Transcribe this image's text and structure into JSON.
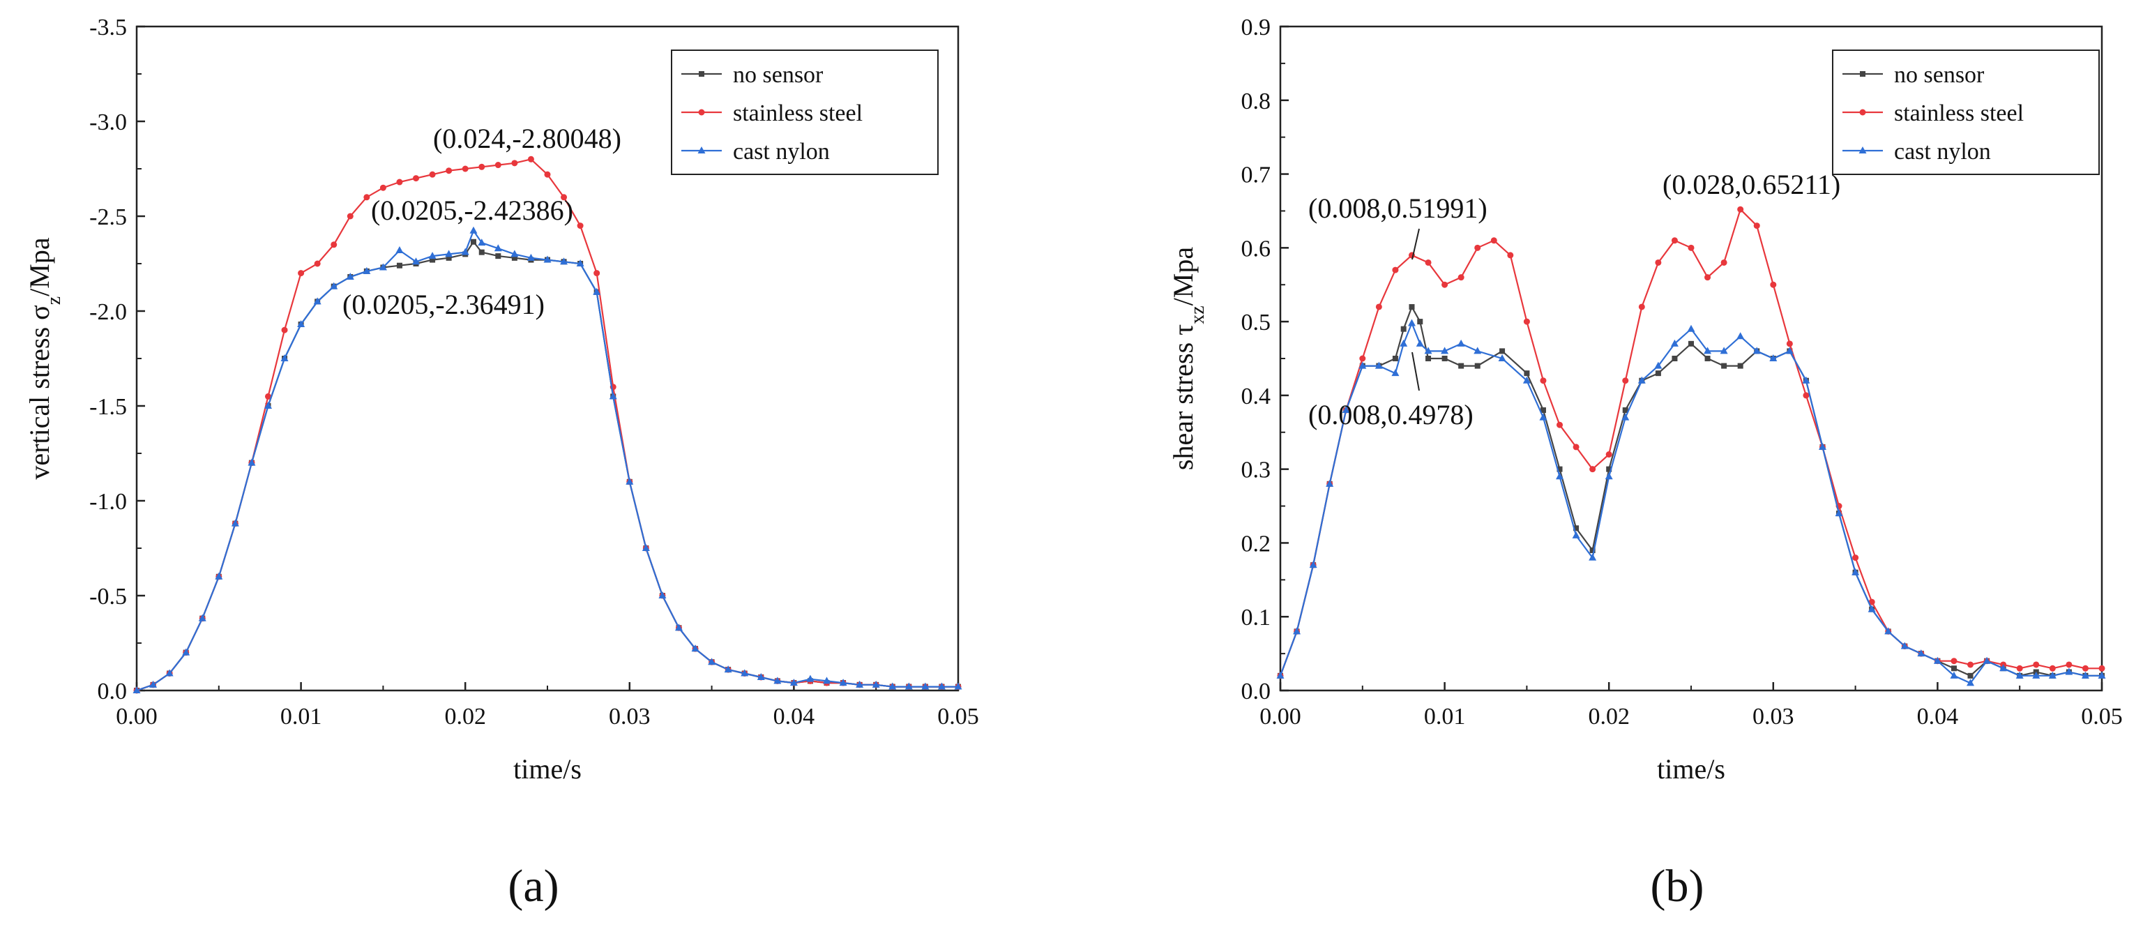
{
  "figure": {
    "colors": {
      "no_sensor": "#444444",
      "stainless_steel": "#e8373c",
      "cast_nylon": "#2f6fd6"
    }
  },
  "chart_data": [
    {
      "type": "line",
      "panel_label": "(a)",
      "xlabel": "time/s",
      "ylabel": "vertical stress σ",
      "ylabel_sub": "z",
      "ylabel_unit": "/Mpa",
      "xlim": [
        0,
        0.05
      ],
      "ylim": [
        0,
        -3.5
      ],
      "x_ticks": [
        "0.00",
        "0.01",
        "0.02",
        "0.03",
        "0.04",
        "0.05"
      ],
      "y_ticks": [
        "0.0",
        "-0.5",
        "-1.0",
        "-1.5",
        "-2.0",
        "-2.5",
        "-3.0",
        "-3.5"
      ],
      "legend": [
        "no sensor",
        "stainless steel",
        "cast nylon"
      ],
      "legend_position": "top-right",
      "series": [
        {
          "name": "no sensor",
          "key": "no_sensor",
          "x": [
            0,
            0.001,
            0.002,
            0.003,
            0.004,
            0.005,
            0.006,
            0.007,
            0.008,
            0.009,
            0.01,
            0.011,
            0.012,
            0.013,
            0.014,
            0.015,
            0.016,
            0.017,
            0.018,
            0.019,
            0.02,
            0.0205,
            0.021,
            0.022,
            0.023,
            0.024,
            0.025,
            0.026,
            0.027,
            0.028,
            0.029,
            0.03,
            0.031,
            0.032,
            0.033,
            0.034,
            0.035,
            0.036,
            0.037,
            0.038,
            0.039,
            0.04,
            0.041,
            0.042,
            0.043,
            0.044,
            0.045,
            0.046,
            0.047,
            0.048,
            0.049,
            0.05
          ],
          "y": [
            0,
            -0.03,
            -0.09,
            -0.2,
            -0.38,
            -0.6,
            -0.88,
            -1.2,
            -1.5,
            -1.75,
            -1.93,
            -2.05,
            -2.13,
            -2.18,
            -2.21,
            -2.23,
            -2.24,
            -2.25,
            -2.27,
            -2.28,
            -2.3,
            -2.36491,
            -2.31,
            -2.29,
            -2.28,
            -2.27,
            -2.27,
            -2.26,
            -2.25,
            -2.1,
            -1.55,
            -1.1,
            -0.75,
            -0.5,
            -0.33,
            -0.22,
            -0.15,
            -0.11,
            -0.09,
            -0.07,
            -0.05,
            -0.04,
            -0.05,
            -0.04,
            -0.04,
            -0.03,
            -0.03,
            -0.02,
            -0.02,
            -0.02,
            -0.02,
            -0.02
          ]
        },
        {
          "name": "stainless steel",
          "key": "stainless_steel",
          "x": [
            0,
            0.001,
            0.002,
            0.003,
            0.004,
            0.005,
            0.006,
            0.007,
            0.008,
            0.009,
            0.01,
            0.011,
            0.012,
            0.013,
            0.014,
            0.015,
            0.016,
            0.017,
            0.018,
            0.019,
            0.02,
            0.021,
            0.022,
            0.023,
            0.024,
            0.025,
            0.026,
            0.027,
            0.028,
            0.029,
            0.03,
            0.031,
            0.032,
            0.033,
            0.034,
            0.035,
            0.036,
            0.037,
            0.038,
            0.039,
            0.04,
            0.041,
            0.042,
            0.043,
            0.044,
            0.045,
            0.046,
            0.047,
            0.048,
            0.049,
            0.05
          ],
          "y": [
            0,
            -0.03,
            -0.09,
            -0.2,
            -0.38,
            -0.6,
            -0.88,
            -1.2,
            -1.55,
            -1.9,
            -2.2,
            -2.25,
            -2.35,
            -2.5,
            -2.6,
            -2.65,
            -2.68,
            -2.7,
            -2.72,
            -2.74,
            -2.75,
            -2.76,
            -2.77,
            -2.78,
            -2.80048,
            -2.72,
            -2.6,
            -2.45,
            -2.2,
            -1.6,
            -1.1,
            -0.75,
            -0.5,
            -0.33,
            -0.22,
            -0.15,
            -0.11,
            -0.09,
            -0.07,
            -0.05,
            -0.04,
            -0.05,
            -0.04,
            -0.04,
            -0.03,
            -0.03,
            -0.02,
            -0.02,
            -0.02,
            -0.02,
            -0.02
          ]
        },
        {
          "name": "cast nylon",
          "key": "cast_nylon",
          "x": [
            0,
            0.001,
            0.002,
            0.003,
            0.004,
            0.005,
            0.006,
            0.007,
            0.008,
            0.009,
            0.01,
            0.011,
            0.012,
            0.013,
            0.014,
            0.015,
            0.016,
            0.017,
            0.018,
            0.019,
            0.02,
            0.0205,
            0.021,
            0.022,
            0.023,
            0.024,
            0.025,
            0.026,
            0.027,
            0.028,
            0.029,
            0.03,
            0.031,
            0.032,
            0.033,
            0.034,
            0.035,
            0.036,
            0.037,
            0.038,
            0.039,
            0.04,
            0.041,
            0.042,
            0.043,
            0.044,
            0.045,
            0.046,
            0.047,
            0.048,
            0.049,
            0.05
          ],
          "y": [
            0,
            -0.03,
            -0.09,
            -0.2,
            -0.38,
            -0.6,
            -0.88,
            -1.2,
            -1.5,
            -1.75,
            -1.93,
            -2.05,
            -2.13,
            -2.18,
            -2.21,
            -2.23,
            -2.32,
            -2.26,
            -2.29,
            -2.3,
            -2.31,
            -2.42386,
            -2.36,
            -2.33,
            -2.3,
            -2.28,
            -2.27,
            -2.26,
            -2.25,
            -2.1,
            -1.55,
            -1.1,
            -0.75,
            -0.5,
            -0.33,
            -0.22,
            -0.15,
            -0.11,
            -0.09,
            -0.07,
            -0.05,
            -0.04,
            -0.06,
            -0.05,
            -0.04,
            -0.03,
            -0.03,
            -0.02,
            -0.02,
            -0.02,
            -0.02,
            -0.02
          ]
        }
      ],
      "annotations": [
        {
          "text": "(0.024,-2.80048)",
          "x": 0.024,
          "y": -2.80048
        },
        {
          "text": "(0.0205,-2.42386)",
          "x": 0.0205,
          "y": -2.42386
        },
        {
          "text": "(0.0205,-2.36491)",
          "x": 0.0205,
          "y": -2.36491
        }
      ]
    },
    {
      "type": "line",
      "panel_label": "(b)",
      "xlabel": "time/s",
      "ylabel": "shear stress τ",
      "ylabel_sub": "xz",
      "ylabel_unit": "/Mpa",
      "xlim": [
        0,
        0.05
      ],
      "ylim": [
        0,
        0.9
      ],
      "x_ticks": [
        "0.00",
        "0.01",
        "0.02",
        "0.03",
        "0.04",
        "0.05"
      ],
      "y_ticks": [
        "0.0",
        "0.1",
        "0.2",
        "0.3",
        "0.4",
        "0.5",
        "0.6",
        "0.7",
        "0.8",
        "0.9"
      ],
      "legend": [
        "no sensor",
        "stainless steel",
        "cast nylon"
      ],
      "legend_position": "top-right",
      "series": [
        {
          "name": "no sensor",
          "key": "no_sensor",
          "x": [
            0,
            0.001,
            0.002,
            0.003,
            0.004,
            0.005,
            0.006,
            0.007,
            0.0075,
            0.008,
            0.0085,
            0.009,
            0.01,
            0.011,
            0.012,
            0.0135,
            0.015,
            0.016,
            0.017,
            0.018,
            0.019,
            0.02,
            0.021,
            0.022,
            0.023,
            0.024,
            0.025,
            0.026,
            0.027,
            0.028,
            0.029,
            0.03,
            0.031,
            0.032,
            0.033,
            0.034,
            0.035,
            0.036,
            0.037,
            0.038,
            0.039,
            0.04,
            0.041,
            0.042,
            0.043,
            0.044,
            0.045,
            0.046,
            0.047,
            0.048,
            0.049,
            0.05
          ],
          "y": [
            0.02,
            0.08,
            0.17,
            0.28,
            0.38,
            0.44,
            0.44,
            0.45,
            0.49,
            0.51991,
            0.5,
            0.45,
            0.45,
            0.44,
            0.44,
            0.46,
            0.43,
            0.38,
            0.3,
            0.22,
            0.19,
            0.3,
            0.38,
            0.42,
            0.43,
            0.45,
            0.47,
            0.45,
            0.44,
            0.44,
            0.46,
            0.45,
            0.46,
            0.42,
            0.33,
            0.24,
            0.16,
            0.11,
            0.08,
            0.06,
            0.05,
            0.04,
            0.03,
            0.02,
            0.04,
            0.03,
            0.02,
            0.025,
            0.02,
            0.025,
            0.02,
            0.02
          ]
        },
        {
          "name": "stainless steel",
          "key": "stainless_steel",
          "x": [
            0,
            0.001,
            0.002,
            0.003,
            0.004,
            0.005,
            0.006,
            0.007,
            0.008,
            0.009,
            0.01,
            0.011,
            0.012,
            0.013,
            0.014,
            0.015,
            0.016,
            0.017,
            0.018,
            0.019,
            0.02,
            0.021,
            0.022,
            0.023,
            0.024,
            0.025,
            0.026,
            0.027,
            0.028,
            0.029,
            0.03,
            0.031,
            0.032,
            0.033,
            0.034,
            0.035,
            0.036,
            0.037,
            0.038,
            0.039,
            0.04,
            0.041,
            0.042,
            0.043,
            0.044,
            0.045,
            0.046,
            0.047,
            0.048,
            0.049,
            0.05
          ],
          "y": [
            0.02,
            0.08,
            0.17,
            0.28,
            0.38,
            0.45,
            0.52,
            0.57,
            0.59,
            0.58,
            0.55,
            0.56,
            0.6,
            0.61,
            0.59,
            0.5,
            0.42,
            0.36,
            0.33,
            0.3,
            0.32,
            0.42,
            0.52,
            0.58,
            0.61,
            0.6,
            0.56,
            0.58,
            0.65211,
            0.63,
            0.55,
            0.47,
            0.4,
            0.33,
            0.25,
            0.18,
            0.12,
            0.08,
            0.06,
            0.05,
            0.04,
            0.04,
            0.035,
            0.04,
            0.035,
            0.03,
            0.035,
            0.03,
            0.035,
            0.03,
            0.03
          ]
        },
        {
          "name": "cast nylon",
          "key": "cast_nylon",
          "x": [
            0,
            0.001,
            0.002,
            0.003,
            0.004,
            0.005,
            0.006,
            0.007,
            0.0075,
            0.008,
            0.0085,
            0.009,
            0.01,
            0.011,
            0.012,
            0.0135,
            0.015,
            0.016,
            0.017,
            0.018,
            0.019,
            0.02,
            0.021,
            0.022,
            0.023,
            0.024,
            0.025,
            0.026,
            0.027,
            0.028,
            0.029,
            0.03,
            0.031,
            0.032,
            0.033,
            0.034,
            0.035,
            0.036,
            0.037,
            0.038,
            0.039,
            0.04,
            0.041,
            0.042,
            0.043,
            0.044,
            0.045,
            0.046,
            0.047,
            0.048,
            0.049,
            0.05
          ],
          "y": [
            0.02,
            0.08,
            0.17,
            0.28,
            0.38,
            0.44,
            0.44,
            0.43,
            0.47,
            0.4978,
            0.47,
            0.46,
            0.46,
            0.47,
            0.46,
            0.45,
            0.42,
            0.37,
            0.29,
            0.21,
            0.18,
            0.29,
            0.37,
            0.42,
            0.44,
            0.47,
            0.49,
            0.46,
            0.46,
            0.48,
            0.46,
            0.45,
            0.46,
            0.42,
            0.33,
            0.24,
            0.16,
            0.11,
            0.08,
            0.06,
            0.05,
            0.04,
            0.02,
            0.01,
            0.04,
            0.03,
            0.02,
            0.02,
            0.02,
            0.025,
            0.02,
            0.02
          ]
        }
      ],
      "annotations": [
        {
          "text": "(0.008,0.51991)",
          "x": 0.008,
          "y": 0.51991
        },
        {
          "text": "(0.028,0.65211)",
          "x": 0.028,
          "y": 0.65211
        },
        {
          "text": "(0.008,0.4978)",
          "x": 0.008,
          "y": 0.4978
        }
      ]
    }
  ]
}
